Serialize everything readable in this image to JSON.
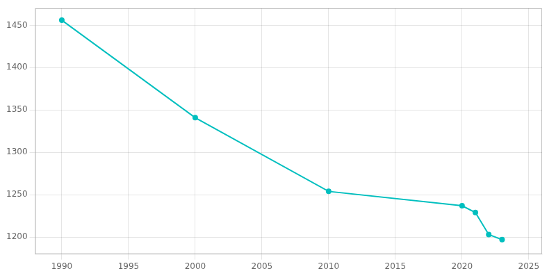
{
  "chart_data": {
    "type": "line",
    "x": [
      1990,
      2000,
      2010,
      2020,
      2021,
      2022,
      2023
    ],
    "values": [
      1456,
      1341,
      1254,
      1237,
      1229,
      1203,
      1197
    ],
    "color": "#00BFBF",
    "marker": "circle",
    "xlim": [
      1988,
      2026
    ],
    "xticks": [
      1990,
      1995,
      2000,
      2005,
      2010,
      2015,
      2020,
      2025
    ],
    "ylim": [
      1180,
      1470
    ],
    "yticks": [
      1200,
      1250,
      1300,
      1350,
      1400,
      1450
    ],
    "grid": true
  }
}
